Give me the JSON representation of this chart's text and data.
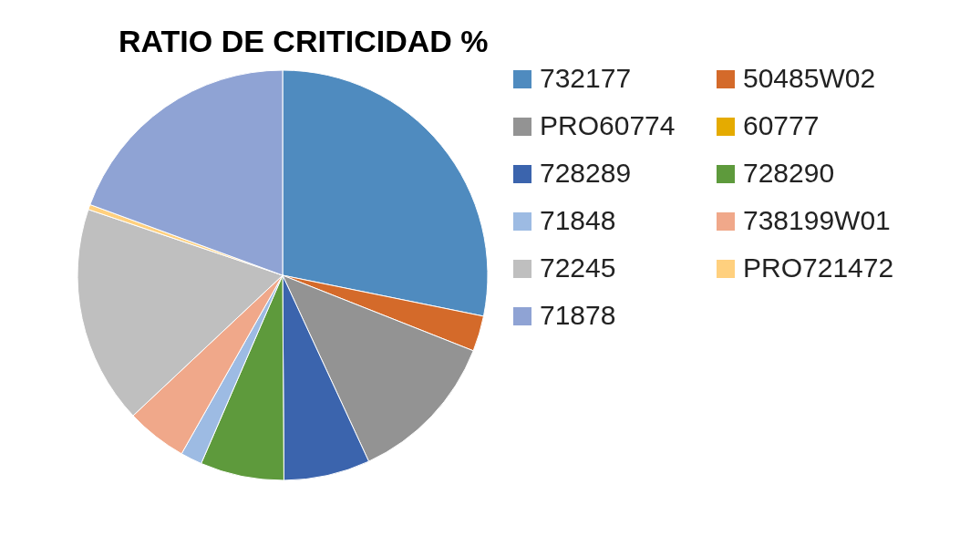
{
  "chart_data": {
    "type": "pie",
    "title": "RATIO DE CRITICIDAD %",
    "categories": [
      "732177",
      "50485W02",
      "PRO60774",
      "60777",
      "728289",
      "728290",
      "71848",
      "738199W01",
      "72245",
      "PRO721472",
      "71878"
    ],
    "values": [
      28.2,
      2.8,
      12.1,
      0,
      6.8,
      6.6,
      1.7,
      4.8,
      17.2,
      0.4,
      19.4
    ],
    "colors": [
      "#4f8bbf",
      "#d46a2a",
      "#939393",
      "#e5ab00",
      "#3b64ad",
      "#5e9a3c",
      "#9dbbe3",
      "#f0a88a",
      "#bfbfbf",
      "#ffd07e",
      "#8fa3d4"
    ],
    "legend": "right"
  }
}
